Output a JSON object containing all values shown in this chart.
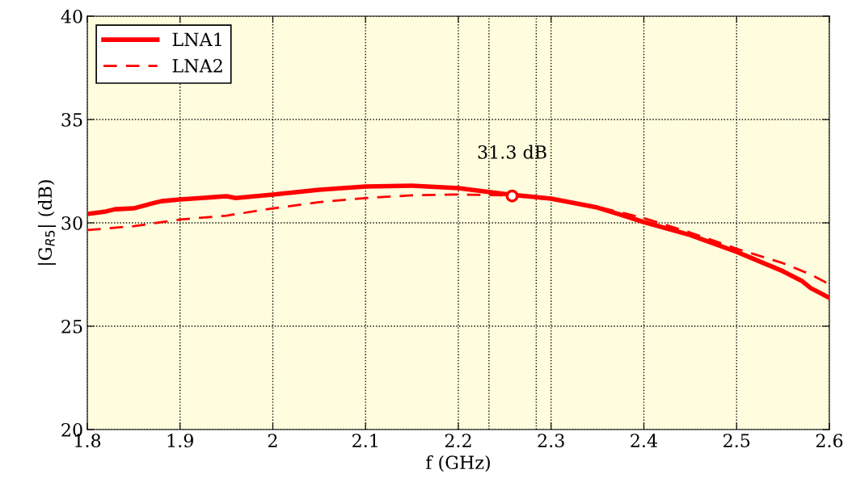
{
  "chart_data": {
    "type": "line",
    "xlabel": "f (GHz)",
    "ylabel": "|G$_{R5}$| (dB)",
    "xlim": [
      1.8,
      2.6
    ],
    "ylim": [
      20,
      40
    ],
    "xticks": [
      1.8,
      1.9,
      2,
      2.1,
      2.2,
      2.3,
      2.4,
      2.5,
      2.6
    ],
    "yticks": [
      20,
      25,
      30,
      35,
      40
    ],
    "grid": true,
    "legend": "top left",
    "series": [
      {
        "name": "LNA1",
        "color": "#ff0000",
        "line_style": "solid",
        "x": [
          1.8,
          1.82,
          1.83,
          1.85,
          1.87,
          1.88,
          1.9,
          1.95,
          1.96,
          2.0,
          2.05,
          2.1,
          2.15,
          2.2,
          2.25,
          2.3,
          2.35,
          2.4,
          2.45,
          2.5,
          2.55,
          2.57,
          2.58,
          2.6
        ],
        "values": [
          30.43,
          30.55,
          30.66,
          30.7,
          30.94,
          31.05,
          31.13,
          31.29,
          31.2,
          31.37,
          31.6,
          31.76,
          31.8,
          31.68,
          31.4,
          31.17,
          30.74,
          30.04,
          29.41,
          28.6,
          27.66,
          27.2,
          26.84,
          26.37
        ]
      },
      {
        "name": "LNA2",
        "color": "#ff0000",
        "line_style": "dashed",
        "x": [
          1.8,
          1.85,
          1.9,
          1.95,
          2.0,
          2.05,
          2.1,
          2.15,
          2.2,
          2.25,
          2.3,
          2.35,
          2.4,
          2.45,
          2.5,
          2.55,
          2.58,
          2.6
        ],
        "values": [
          29.65,
          29.84,
          30.16,
          30.35,
          30.7,
          31.0,
          31.2,
          31.33,
          31.37,
          31.33,
          31.13,
          30.78,
          30.23,
          29.53,
          28.75,
          28.05,
          27.5,
          27.03
        ]
      }
    ],
    "ref_lines": [
      {
        "axis": "x",
        "value": 2.233,
        "color": "#000000",
        "line_style": "dotted"
      },
      {
        "axis": "x",
        "value": 2.284,
        "color": "#000000",
        "line_style": "dotted"
      }
    ],
    "annotations": [
      {
        "text": "31.3 dB",
        "x": 2.258,
        "y": 31.3
      }
    ]
  }
}
